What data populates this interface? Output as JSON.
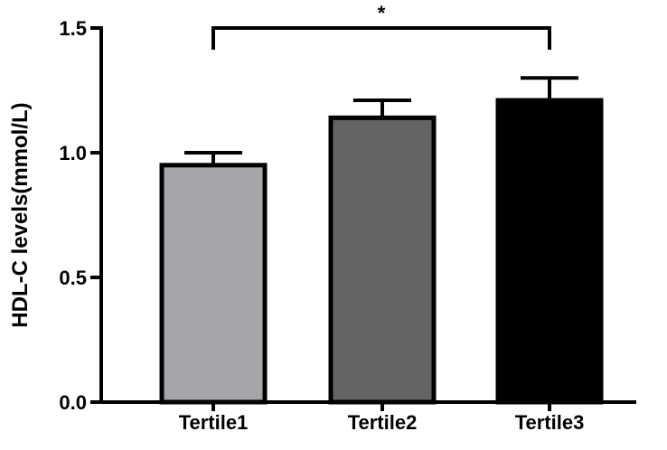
{
  "chart_data": {
    "type": "bar",
    "title": "",
    "xlabel": "",
    "ylabel": "HDL-C levels(mmol/L)",
    "ylim": [
      0,
      1.5
    ],
    "yticks": [
      "0.0",
      "0.5",
      "1.0",
      "1.5"
    ],
    "categories": [
      "Tertile1",
      "Tertile2",
      "Tertile3"
    ],
    "values": [
      0.95,
      1.14,
      1.21
    ],
    "error_upper": [
      1.0,
      1.21,
      1.3
    ],
    "bar_colors": [
      "#a6a6aa",
      "#646464",
      "#000000"
    ],
    "significance": {
      "from": "Tertile1",
      "to": "Tertile3",
      "label": "*"
    },
    "grid": false,
    "legend": "none"
  }
}
